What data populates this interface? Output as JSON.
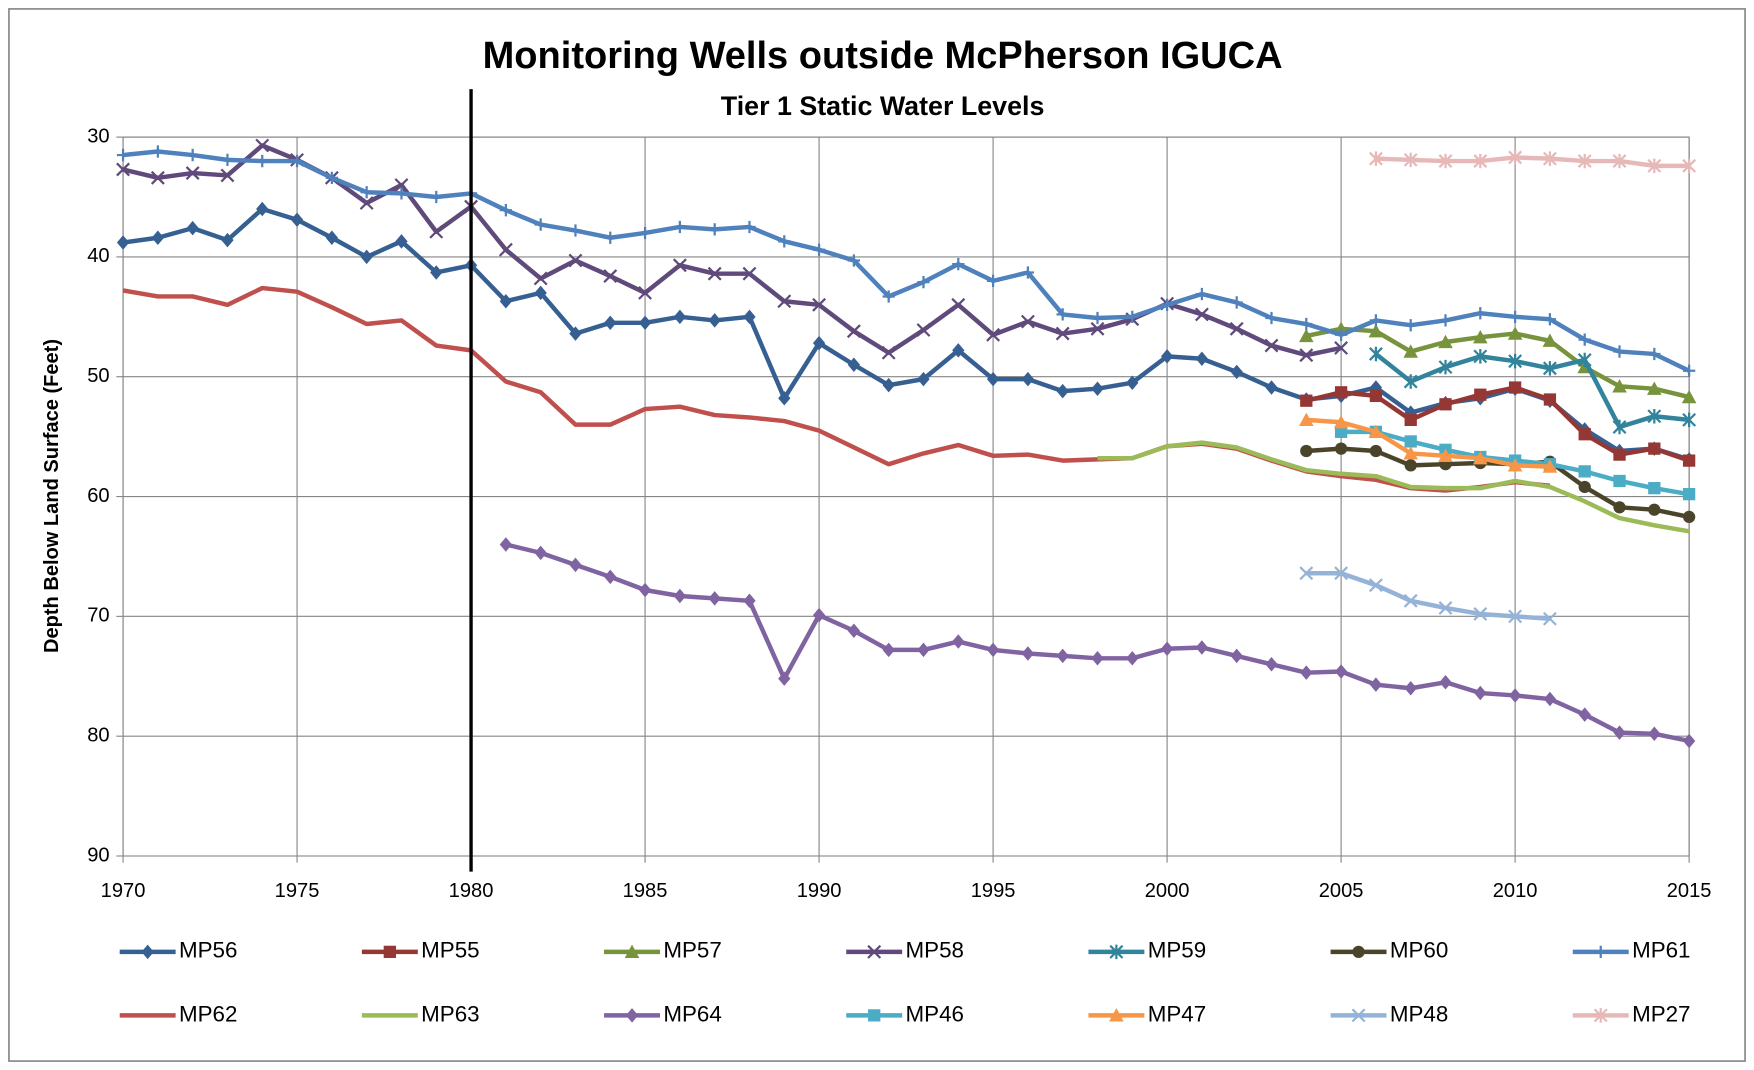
{
  "chart_data": {
    "type": "line",
    "title": "Monitoring Wells outside McPherson IGUCA",
    "subtitle": "Tier 1 Static Water Levels",
    "y_label": "Depth Below Land Surface (Feet)",
    "x": [
      1970,
      1971,
      1972,
      1973,
      1974,
      1975,
      1976,
      1977,
      1978,
      1979,
      1980,
      1981,
      1982,
      1983,
      1984,
      1985,
      1986,
      1987,
      1988,
      1989,
      1990,
      1991,
      1992,
      1993,
      1994,
      1995,
      1996,
      1997,
      1998,
      1999,
      2000,
      2001,
      2002,
      2003,
      2004,
      2005,
      2006,
      2007,
      2008,
      2009,
      2010,
      2011,
      2012,
      2013,
      2014,
      2015
    ],
    "xlim": [
      1970,
      2015
    ],
    "xticks": [
      1970,
      1975,
      1980,
      1985,
      1990,
      1995,
      2000,
      2005,
      2010,
      2015
    ],
    "ylim": [
      90,
      30
    ],
    "yticks": [
      30,
      40,
      50,
      60,
      70,
      80,
      90
    ],
    "grid": true,
    "legend": "bottom",
    "reference_line_x": 1980,
    "series": [
      {
        "name": "MP56",
        "color": "#376092",
        "marker": "diamond",
        "values": [
          38.8,
          38.4,
          37.6,
          38.6,
          36.0,
          36.9,
          38.4,
          40.0,
          38.7,
          41.3,
          40.7,
          43.7,
          43.0,
          46.4,
          45.5,
          45.5,
          45.0,
          45.3,
          45.0,
          51.8,
          47.2,
          49.0,
          50.7,
          50.2,
          47.8,
          50.2,
          50.2,
          51.2,
          51.0,
          50.5,
          48.3,
          48.5,
          49.6,
          50.9,
          51.9,
          51.6,
          50.9,
          53.0,
          52.2,
          51.8,
          51.0,
          52.0,
          54.4,
          56.2,
          56.0,
          56.9
        ]
      },
      {
        "name": "MP55",
        "color": "#953735",
        "marker": "square",
        "values": [
          null,
          null,
          null,
          null,
          null,
          null,
          null,
          null,
          null,
          null,
          null,
          null,
          null,
          null,
          null,
          null,
          null,
          null,
          null,
          null,
          null,
          null,
          null,
          null,
          null,
          null,
          null,
          null,
          null,
          null,
          null,
          null,
          null,
          null,
          52.0,
          51.3,
          51.6,
          53.6,
          52.3,
          51.5,
          50.9,
          51.9,
          54.8,
          56.5,
          56.0,
          57.0
        ]
      },
      {
        "name": "MP57",
        "color": "#77933c",
        "marker": "triangle",
        "values": [
          null,
          null,
          null,
          null,
          null,
          null,
          null,
          null,
          null,
          null,
          null,
          null,
          null,
          null,
          null,
          null,
          null,
          null,
          null,
          null,
          null,
          null,
          null,
          null,
          null,
          null,
          null,
          null,
          null,
          null,
          null,
          null,
          null,
          null,
          46.6,
          46.0,
          46.2,
          47.9,
          47.1,
          46.7,
          46.4,
          47.0,
          49.2,
          50.8,
          51.0,
          51.7
        ]
      },
      {
        "name": "MP58",
        "color": "#604a7b",
        "marker": "x",
        "values": [
          32.7,
          33.4,
          33.0,
          33.2,
          30.7,
          31.9,
          33.4,
          35.5,
          34.0,
          37.9,
          35.8,
          39.4,
          41.8,
          40.3,
          41.6,
          43.0,
          40.7,
          41.4,
          41.4,
          43.7,
          44.0,
          46.2,
          48.0,
          46.1,
          44.0,
          46.5,
          45.4,
          46.4,
          46.0,
          45.2,
          43.9,
          44.8,
          46.0,
          47.4,
          48.2,
          47.6,
          null,
          null,
          null,
          null,
          null,
          null,
          null,
          null,
          null,
          null
        ]
      },
      {
        "name": "MP59",
        "color": "#31849b",
        "marker": "asterisk",
        "values": [
          null,
          null,
          null,
          null,
          null,
          null,
          null,
          null,
          null,
          null,
          null,
          null,
          null,
          null,
          null,
          null,
          null,
          null,
          null,
          null,
          null,
          null,
          null,
          null,
          null,
          null,
          null,
          null,
          null,
          null,
          null,
          null,
          null,
          null,
          null,
          null,
          48.1,
          50.4,
          49.2,
          48.3,
          48.7,
          49.3,
          48.6,
          54.2,
          53.3,
          53.6
        ]
      },
      {
        "name": "MP60",
        "color": "#4a452a",
        "marker": "circle",
        "values": [
          null,
          null,
          null,
          null,
          null,
          null,
          null,
          null,
          null,
          null,
          null,
          null,
          null,
          null,
          null,
          null,
          null,
          null,
          null,
          null,
          null,
          null,
          null,
          null,
          null,
          null,
          null,
          null,
          null,
          null,
          null,
          null,
          null,
          null,
          56.2,
          56.0,
          56.2,
          57.4,
          57.3,
          57.2,
          57.3,
          57.1,
          59.2,
          60.9,
          61.1,
          61.7
        ]
      },
      {
        "name": "MP61",
        "color": "#4f81bd",
        "marker": "plus",
        "values": [
          31.5,
          31.2,
          31.5,
          31.9,
          32.0,
          32.0,
          33.4,
          34.6,
          34.7,
          35.0,
          34.7,
          36.1,
          37.3,
          37.8,
          38.4,
          38.0,
          37.5,
          37.7,
          37.5,
          38.7,
          39.4,
          40.3,
          43.3,
          42.1,
          40.6,
          42.0,
          41.3,
          44.8,
          45.1,
          45.0,
          44.0,
          43.1,
          43.8,
          45.1,
          45.6,
          46.5,
          45.3,
          45.7,
          45.3,
          44.7,
          45.0,
          45.2,
          46.9,
          47.9,
          48.1,
          49.5
        ]
      },
      {
        "name": "MP62",
        "color": "#c0504d",
        "marker": "none",
        "values": [
          42.8,
          43.3,
          43.3,
          44.0,
          42.6,
          42.9,
          44.2,
          45.6,
          45.3,
          47.4,
          47.8,
          50.4,
          51.3,
          54.0,
          54.0,
          52.7,
          52.5,
          53.2,
          53.4,
          53.7,
          54.5,
          55.9,
          57.3,
          56.4,
          55.7,
          56.6,
          56.5,
          57.0,
          56.9,
          56.8,
          55.8,
          55.6,
          56.0,
          57.0,
          57.9,
          58.3,
          58.6,
          59.3,
          59.5,
          59.2,
          58.8,
          59.1,
          null,
          null,
          null,
          null
        ]
      },
      {
        "name": "MP63",
        "color": "#9bbb59",
        "marker": "none",
        "values": [
          null,
          null,
          null,
          null,
          null,
          null,
          null,
          null,
          null,
          null,
          null,
          null,
          null,
          null,
          null,
          null,
          null,
          null,
          null,
          null,
          null,
          null,
          null,
          null,
          null,
          null,
          null,
          null,
          56.8,
          56.8,
          55.8,
          55.5,
          55.9,
          56.9,
          57.8,
          58.1,
          58.3,
          59.2,
          59.3,
          59.3,
          58.7,
          59.2,
          60.4,
          61.8,
          62.4,
          62.9
        ]
      },
      {
        "name": "MP64",
        "color": "#8064a2",
        "marker": "diamond",
        "values": [
          null,
          null,
          null,
          null,
          null,
          null,
          null,
          null,
          null,
          null,
          null,
          64.0,
          64.7,
          65.7,
          66.7,
          67.8,
          68.3,
          68.5,
          68.7,
          75.2,
          69.9,
          71.2,
          72.8,
          72.8,
          72.1,
          72.8,
          73.1,
          73.3,
          73.5,
          73.5,
          72.7,
          72.6,
          73.3,
          74.0,
          74.7,
          74.6,
          75.7,
          76.0,
          75.5,
          76.4,
          76.6,
          76.9,
          78.2,
          79.7,
          79.8,
          80.4
        ]
      },
      {
        "name": "MP46",
        "color": "#4bacc6",
        "marker": "square",
        "values": [
          null,
          null,
          null,
          null,
          null,
          null,
          null,
          null,
          null,
          null,
          null,
          null,
          null,
          null,
          null,
          null,
          null,
          null,
          null,
          null,
          null,
          null,
          null,
          null,
          null,
          null,
          null,
          null,
          null,
          null,
          null,
          null,
          null,
          null,
          null,
          54.6,
          54.6,
          55.4,
          56.1,
          56.7,
          57.0,
          57.3,
          57.9,
          58.7,
          59.3,
          59.8
        ]
      },
      {
        "name": "MP47",
        "color": "#f79646",
        "marker": "triangle",
        "values": [
          null,
          null,
          null,
          null,
          null,
          null,
          null,
          null,
          null,
          null,
          null,
          null,
          null,
          null,
          null,
          null,
          null,
          null,
          null,
          null,
          null,
          null,
          null,
          null,
          null,
          null,
          null,
          null,
          null,
          null,
          null,
          null,
          null,
          null,
          53.6,
          53.8,
          54.6,
          56.4,
          56.6,
          56.8,
          57.4,
          57.5,
          null,
          null,
          null,
          null
        ]
      },
      {
        "name": "MP48",
        "color": "#95b3d7",
        "marker": "x",
        "values": [
          null,
          null,
          null,
          null,
          null,
          null,
          null,
          null,
          null,
          null,
          null,
          null,
          null,
          null,
          null,
          null,
          null,
          null,
          null,
          null,
          null,
          null,
          null,
          null,
          null,
          null,
          null,
          null,
          null,
          null,
          null,
          null,
          null,
          null,
          66.4,
          66.4,
          67.4,
          68.7,
          69.3,
          69.8,
          70.0,
          70.2,
          null,
          null,
          null,
          null
        ]
      },
      {
        "name": "MP27",
        "color": "#e6b9b8",
        "marker": "asterisk",
        "values": [
          null,
          null,
          null,
          null,
          null,
          null,
          null,
          null,
          null,
          null,
          null,
          null,
          null,
          null,
          null,
          null,
          null,
          null,
          null,
          null,
          null,
          null,
          null,
          null,
          null,
          null,
          null,
          null,
          null,
          null,
          null,
          null,
          null,
          null,
          null,
          null,
          31.8,
          31.9,
          32.0,
          32.0,
          31.7,
          31.8,
          32.0,
          32.0,
          32.4,
          32.4
        ]
      }
    ]
  }
}
